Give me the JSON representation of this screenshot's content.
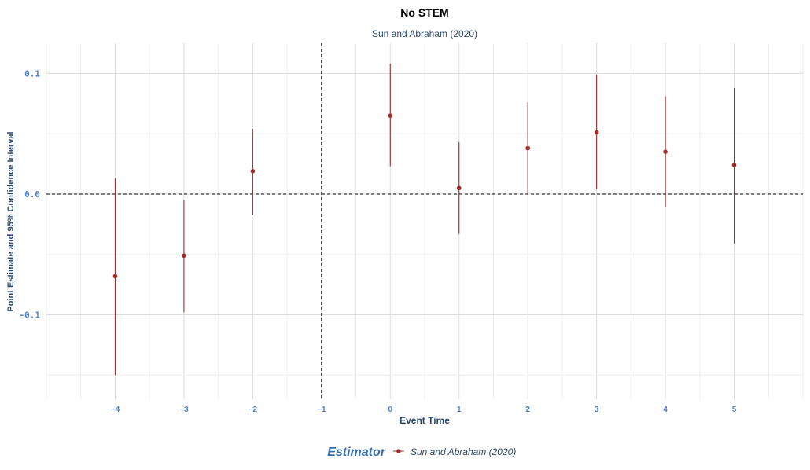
{
  "chart_data": {
    "type": "scatter",
    "title": "No STEM",
    "subtitle": "Sun and Abraham (2020)",
    "xlabel": "Event Time",
    "ylabel": "Point Estimate and 95% Confidence Interval",
    "x_ticks": [
      -4,
      -3,
      -2,
      -1,
      0,
      1,
      2,
      3,
      4,
      5
    ],
    "x_tick_labels": [
      "−4",
      "−3",
      "−2",
      "−1",
      "0",
      "1",
      "2",
      "3",
      "4",
      "5"
    ],
    "y_ticks": [
      -0.1,
      0.0,
      0.1
    ],
    "y_tick_labels": [
      "-0.1",
      "0.0",
      "0.1"
    ],
    "xlim": [
      -5,
      6
    ],
    "ylim": [
      -0.17,
      0.125
    ],
    "reference_lines": {
      "x": -1,
      "y": 0
    },
    "grid": true,
    "legend": {
      "title": "Estimator",
      "position": "bottom"
    },
    "series": [
      {
        "name": "Sun and Abraham (2020)",
        "color": "#a52a2a",
        "points": [
          {
            "x": -4,
            "y": -0.068,
            "lo": -0.15,
            "hi": 0.013
          },
          {
            "x": -3,
            "y": -0.051,
            "lo": -0.098,
            "hi": -0.005
          },
          {
            "x": -2,
            "y": 0.019,
            "lo": -0.017,
            "hi": 0.054
          },
          {
            "x": 0,
            "y": 0.065,
            "lo": 0.023,
            "hi": 0.108
          },
          {
            "x": 1,
            "y": 0.005,
            "lo": -0.033,
            "hi": 0.043
          },
          {
            "x": 2,
            "y": 0.038,
            "lo": 0.0,
            "hi": 0.076
          },
          {
            "x": 3,
            "y": 0.051,
            "lo": 0.004,
            "hi": 0.099
          },
          {
            "x": 4,
            "y": 0.035,
            "lo": -0.011,
            "hi": 0.081
          },
          {
            "x": 5,
            "y": 0.024,
            "lo": -0.041,
            "hi": 0.088
          }
        ]
      }
    ]
  }
}
